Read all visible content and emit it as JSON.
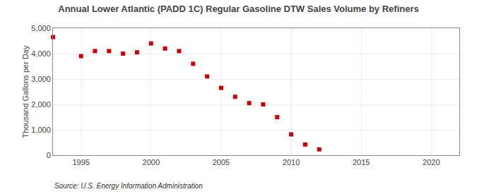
{
  "chart_data": {
    "type": "scatter",
    "title": "Annual Lower Atlantic (PADD 1C) Regular Gasoline DTW Sales Volume by Refiners",
    "ylabel": "Thousand Gallons per Day",
    "annotations": [
      "Source: U.S. Energy Information Administration"
    ],
    "x": [
      1993,
      1995,
      1996,
      1997,
      1998,
      1999,
      2000,
      2001,
      2002,
      2003,
      2004,
      2005,
      2006,
      2007,
      2008,
      2009,
      2010,
      2011,
      2012
    ],
    "values": [
      4650,
      3900,
      4100,
      4100,
      4000,
      4050,
      4400,
      4200,
      4100,
      3600,
      3100,
      2650,
      2300,
      2050,
      2000,
      1500,
      820,
      420,
      230
    ],
    "color": "#cc0000",
    "marker": "square",
    "xlim": [
      1993,
      2022
    ],
    "xticks": [
      1995,
      2000,
      2005,
      2010,
      2015,
      2020
    ],
    "ylim": [
      0,
      5000
    ],
    "yticks": [
      0,
      {
        "value": 1000,
        "label": "1,000"
      },
      {
        "value": 2000,
        "label": "2,000"
      },
      {
        "value": 3000,
        "label": "3,000"
      },
      {
        "value": 4000,
        "label": "4,000"
      },
      {
        "value": 5000,
        "label": "5,000"
      }
    ],
    "grid": true
  }
}
